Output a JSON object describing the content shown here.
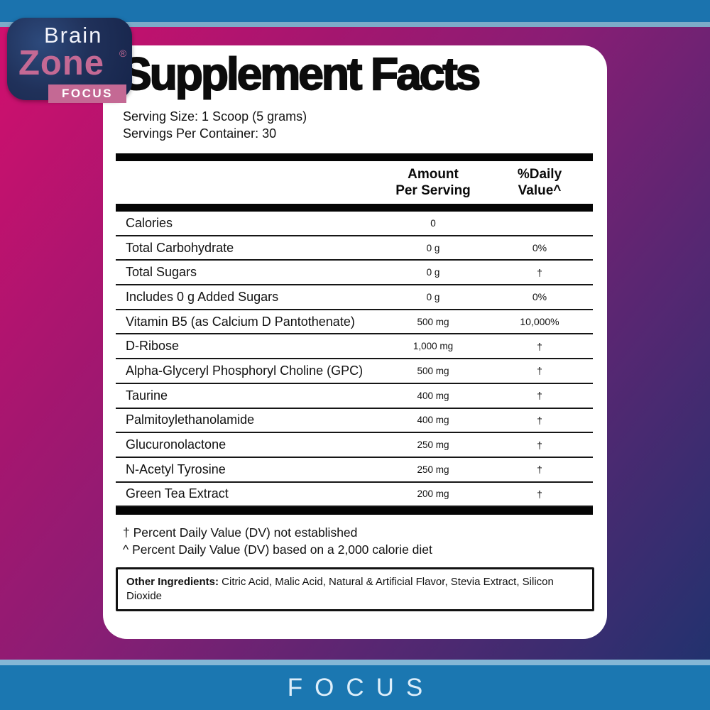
{
  "colors": {
    "top_bar_blue": "#1b73ae",
    "light_blue_strip": "#7cabc9",
    "footer_bar_blue": "#1b77b1",
    "bg_magenta": "#d40f6e",
    "bg_purple": "#8a1d74",
    "bg_navy": "#1c336e",
    "logo_navy": "#20315a",
    "logo_pink": "#c46994",
    "footer_text": "#ddeefa"
  },
  "logo": {
    "line1": "Brain",
    "line2": "Zone",
    "registered": "®",
    "badge": "FOCUS"
  },
  "panel": {
    "title": "Supplement Facts",
    "serving_size": "Serving Size: 1 Scoop (5 grams)",
    "servings_per_container": "Servings Per Container: 30",
    "header": {
      "amount_line1": "Amount",
      "amount_line2": "Per Serving",
      "dv_line1": "%Daily",
      "dv_line2": "Value^"
    },
    "rows": [
      {
        "label": "Calories",
        "amount": "0",
        "dv": ""
      },
      {
        "label": "Total Carbohydrate",
        "amount": "0 g",
        "dv": "0%"
      },
      {
        "label": "Total Sugars",
        "amount": "0 g",
        "dv": "†"
      },
      {
        "label": "Includes 0 g Added Sugars",
        "amount": "0 g",
        "dv": "0%"
      },
      {
        "label": "Vitamin B5 (as Calcium D Pantothenate)",
        "amount": "500 mg",
        "dv": "10,000%"
      },
      {
        "label": "D-Ribose",
        "amount": "1,000 mg",
        "dv": "†"
      },
      {
        "label": "Alpha-Glyceryl Phosphoryl Choline (GPC)",
        "amount": "500 mg",
        "dv": "†"
      },
      {
        "label": "Taurine",
        "amount": "400 mg",
        "dv": "†"
      },
      {
        "label": "Palmitoylethanolamide",
        "amount": "400 mg",
        "dv": "†"
      },
      {
        "label": "Glucuronolactone",
        "amount": "250 mg",
        "dv": "†"
      },
      {
        "label": "N-Acetyl Tyrosine",
        "amount": "250 mg",
        "dv": "†"
      },
      {
        "label": "Green Tea Extract",
        "amount": "200 mg",
        "dv": "†"
      }
    ],
    "footnotes": [
      "† Percent Daily Value (DV) not established",
      "^ Percent Daily Value (DV) based on a 2,000 calorie diet"
    ],
    "other_ingredients_label": "Other Ingredients:",
    "other_ingredients_text": " Citric Acid, Malic Acid, Natural & Artificial Flavor, Stevia Extract, Silicon Dioxide"
  },
  "footer": {
    "label": "FOCUS"
  }
}
